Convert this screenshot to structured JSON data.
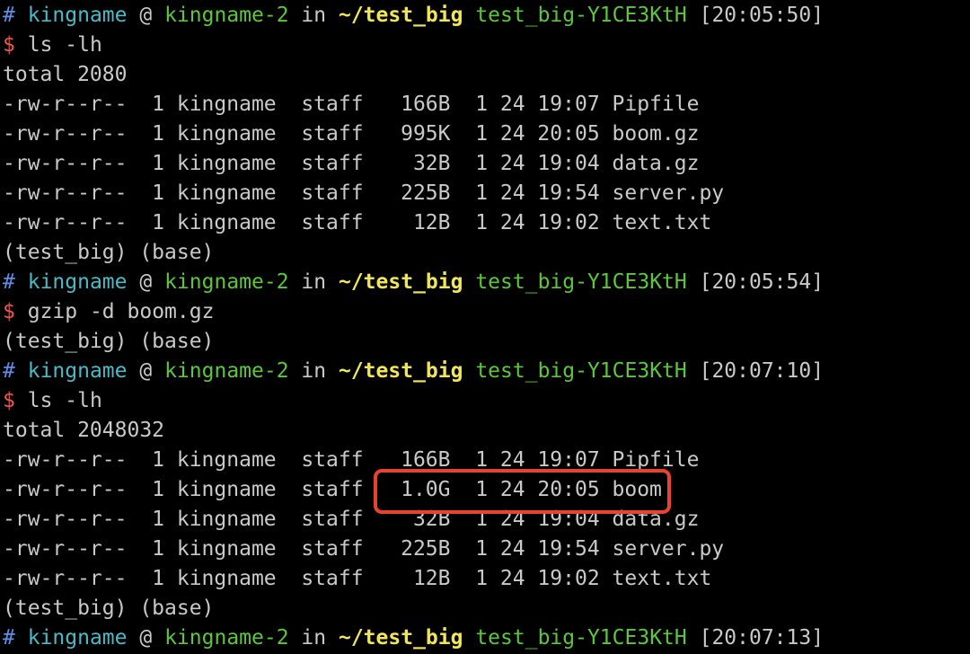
{
  "colors": {
    "highlight": "#e8432e",
    "prompt_hash": "#5f8fe8",
    "user": "#4bbac6",
    "host": "#5cc63c",
    "dir": "#f1e65a",
    "dollar": "#ea5a4b",
    "text": "#c9c9c9"
  },
  "lines": [
    {
      "type": "prompt",
      "hash": "#",
      "user": "kingname",
      "at": "@",
      "host": "kingname-2",
      "in": "in",
      "dir": "~/test_big",
      "env": "test_big-Y1CE3KtH",
      "time": "[20:05:50]"
    },
    {
      "type": "cmd",
      "dollar": "$",
      "text": "ls -lh"
    },
    {
      "type": "out",
      "text": "total 2080"
    },
    {
      "type": "out",
      "text": "-rw-r--r--  1 kingname  staff   166B  1 24 19:07 Pipfile"
    },
    {
      "type": "out",
      "text": "-rw-r--r--  1 kingname  staff   995K  1 24 20:05 boom.gz"
    },
    {
      "type": "out",
      "text": "-rw-r--r--  1 kingname  staff    32B  1 24 19:04 data.gz"
    },
    {
      "type": "out",
      "text": "-rw-r--r--  1 kingname  staff   225B  1 24 19:54 server.py"
    },
    {
      "type": "out",
      "text": "-rw-r--r--  1 kingname  staff    12B  1 24 19:02 text.txt"
    },
    {
      "type": "out",
      "text": "(test_big) (base)"
    },
    {
      "type": "prompt",
      "hash": "#",
      "user": "kingname",
      "at": "@",
      "host": "kingname-2",
      "in": "in",
      "dir": "~/test_big",
      "env": "test_big-Y1CE3KtH",
      "time": "[20:05:54]"
    },
    {
      "type": "cmd",
      "dollar": "$",
      "text": "gzip -d boom.gz"
    },
    {
      "type": "out",
      "text": "(test_big) (base)"
    },
    {
      "type": "prompt",
      "hash": "#",
      "user": "kingname",
      "at": "@",
      "host": "kingname-2",
      "in": "in",
      "dir": "~/test_big",
      "env": "test_big-Y1CE3KtH",
      "time": "[20:07:10]"
    },
    {
      "type": "cmd",
      "dollar": "$",
      "text": "ls -lh"
    },
    {
      "type": "out",
      "text": "total 2048032"
    },
    {
      "type": "out",
      "text": "-rw-r--r--  1 kingname  staff   166B  1 24 19:07 Pipfile"
    },
    {
      "type": "out",
      "text": "-rw-r--r--  1 kingname  staff   1.0G  1 24 20:05 boom"
    },
    {
      "type": "out",
      "text": "-rw-r--r--  1 kingname  staff    32B  1 24 19:04 data.gz"
    },
    {
      "type": "out",
      "text": "-rw-r--r--  1 kingname  staff   225B  1 24 19:54 server.py"
    },
    {
      "type": "out",
      "text": "-rw-r--r--  1 kingname  staff    12B  1 24 19:02 text.txt"
    },
    {
      "type": "out",
      "text": "(test_big) (base)"
    },
    {
      "type": "prompt",
      "hash": "#",
      "user": "kingname",
      "at": "@",
      "host": "kingname-2",
      "in": "in",
      "dir": "~/test_big",
      "env": "test_big-Y1CE3KtH",
      "time": "[20:07:13]"
    }
  ]
}
